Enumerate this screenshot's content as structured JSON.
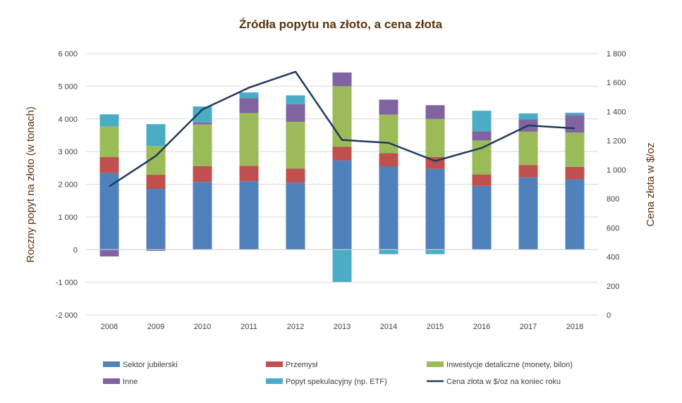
{
  "chart_data": {
    "type": "bar",
    "stacked": true,
    "title": "Źródła popytu na złoto, a cena złota",
    "ylabel": "Roczny popyt na złoto (w tonach)",
    "y2label": "Cena złota w $/oz",
    "ylim": [
      -2000,
      6000
    ],
    "y2lim": [
      0,
      1800
    ],
    "yticks": [
      6000,
      5000,
      4000,
      3000,
      2000,
      1000,
      0,
      -1000,
      -2000
    ],
    "ytick_labels": [
      "6 000",
      "5 000",
      "4 000",
      "3 000",
      "2 000",
      "1 000",
      "0",
      "-1 000",
      "-2 000"
    ],
    "y2ticks": [
      1800,
      1600,
      1400,
      1200,
      1000,
      800,
      600,
      400,
      200,
      0
    ],
    "y2tick_labels": [
      "1 800",
      "1 600",
      "1 400",
      "1 200",
      "1 000",
      "800",
      "600",
      "400",
      "200",
      "0"
    ],
    "categories": [
      "2008",
      "2009",
      "2010",
      "2011",
      "2012",
      "2013",
      "2014",
      "2015",
      "2016",
      "2017",
      "2018"
    ],
    "series": [
      {
        "name": "Sektor jubilerski",
        "color": "#4f81bd",
        "values": [
          2340,
          1860,
          2070,
          2090,
          2050,
          2730,
          2550,
          2470,
          1950,
          2210,
          2150
        ]
      },
      {
        "name": "Przemysł",
        "color": "#c0504d",
        "values": [
          490,
          430,
          480,
          470,
          430,
          420,
          400,
          360,
          350,
          380,
          380
        ]
      },
      {
        "name": "Inwestycje detaliczne (monety, bilon)",
        "color": "#9bbb59",
        "values": [
          940,
          880,
          1280,
          1620,
          1430,
          1850,
          1180,
          1170,
          1040,
          1020,
          1050
        ]
      },
      {
        "name": "Inne",
        "color": "#8064a2",
        "values": [
          -210,
          -40,
          60,
          450,
          540,
          420,
          460,
          420,
          280,
          380,
          540
        ]
      },
      {
        "name": "Popyt spekulacyjny (np. ETF)",
        "color": "#4bacc6",
        "values": [
          370,
          670,
          490,
          180,
          270,
          -990,
          -140,
          -140,
          630,
          180,
          70
        ]
      }
    ],
    "line": {
      "name": "Cena złota w $/oz na koniec roku",
      "color": "#1f3b5c",
      "axis": "right",
      "values": [
        885,
        1095,
        1415,
        1565,
        1675,
        1205,
        1185,
        1060,
        1150,
        1305,
        1285
      ]
    },
    "legend": "bottom",
    "grid": true
  }
}
